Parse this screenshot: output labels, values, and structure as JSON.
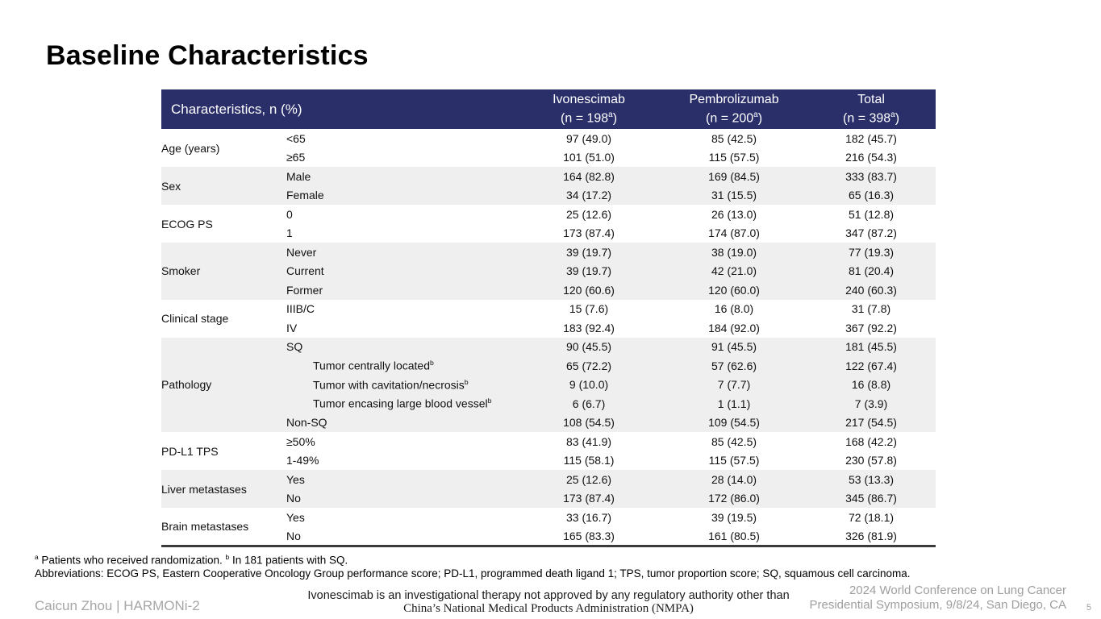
{
  "slide": {
    "title": "Baseline Characteristics",
    "page_number": "5"
  },
  "table": {
    "header": {
      "characteristics_label": "Characteristics, n (%)",
      "columns": [
        {
          "title": "Ivonescimab",
          "n": "198",
          "note": "a"
        },
        {
          "title": "Pembrolizumab",
          "n": "200",
          "note": "a"
        },
        {
          "title": "Total",
          "n": "398",
          "note": "a"
        }
      ]
    },
    "groups": [
      {
        "label": "Age (years)",
        "rows": [
          {
            "characteristic": "<65",
            "values": [
              "97 (49.0)",
              "85 (42.5)",
              "182 (45.7)"
            ]
          },
          {
            "characteristic": "≥65",
            "values": [
              "101 (51.0)",
              "115 (57.5)",
              "216 (54.3)"
            ]
          }
        ]
      },
      {
        "label": "Sex",
        "rows": [
          {
            "characteristic": "Male",
            "values": [
              "164 (82.8)",
              "169 (84.5)",
              "333 (83.7)"
            ]
          },
          {
            "characteristic": "Female",
            "values": [
              "34 (17.2)",
              "31 (15.5)",
              "65 (16.3)"
            ]
          }
        ]
      },
      {
        "label": "ECOG PS",
        "rows": [
          {
            "characteristic": "0",
            "values": [
              "25 (12.6)",
              "26 (13.0)",
              "51 (12.8)"
            ]
          },
          {
            "characteristic": "1",
            "values": [
              "173 (87.4)",
              "174 (87.0)",
              "347 (87.2)"
            ]
          }
        ]
      },
      {
        "label": "Smoker",
        "rows": [
          {
            "characteristic": "Never",
            "values": [
              "39 (19.7)",
              "38 (19.0)",
              "77 (19.3)"
            ]
          },
          {
            "characteristic": "Current",
            "values": [
              "39 (19.7)",
              "42 (21.0)",
              "81 (20.4)"
            ]
          },
          {
            "characteristic": "Former",
            "values": [
              "120 (60.6)",
              "120 (60.0)",
              "240 (60.3)"
            ]
          }
        ]
      },
      {
        "label": "Clinical stage",
        "rows": [
          {
            "characteristic": "IIIB/C",
            "values": [
              "15 (7.6)",
              "16 (8.0)",
              "31 (7.8)"
            ]
          },
          {
            "characteristic": "IV",
            "values": [
              "183 (92.4)",
              "184 (92.0)",
              "367 (92.2)"
            ]
          }
        ]
      },
      {
        "label": "Pathology",
        "rows": [
          {
            "characteristic": "SQ",
            "values": [
              "90 (45.5)",
              "91 (45.5)",
              "181 (45.5)"
            ]
          },
          {
            "characteristic": "Tumor centrally located",
            "sup": "b",
            "indent": true,
            "values": [
              "65 (72.2)",
              "57 (62.6)",
              "122 (67.4)"
            ]
          },
          {
            "characteristic": "Tumor with cavitation/necrosis",
            "sup": "b",
            "indent": true,
            "values": [
              "9 (10.0)",
              "7 (7.7)",
              "16 (8.8)"
            ]
          },
          {
            "characteristic": "Tumor encasing large blood vessel",
            "sup": "b",
            "indent": true,
            "values": [
              "6 (6.7)",
              "1 (1.1)",
              "7 (3.9)"
            ]
          },
          {
            "characteristic": "Non-SQ",
            "values": [
              "108 (54.5)",
              "109 (54.5)",
              "217 (54.5)"
            ]
          }
        ]
      },
      {
        "label": "PD-L1 TPS",
        "rows": [
          {
            "characteristic": "≥50%",
            "values": [
              "83 (41.9)",
              "85 (42.5)",
              "168 (42.2)"
            ]
          },
          {
            "characteristic": "1-49%",
            "values": [
              "115 (58.1)",
              "115 (57.5)",
              "230 (57.8)"
            ]
          }
        ]
      },
      {
        "label": "Liver metastases",
        "rows": [
          {
            "characteristic": "Yes",
            "values": [
              "25 (12.6)",
              "28 (14.0)",
              "53 (13.3)"
            ]
          },
          {
            "characteristic": "No",
            "values": [
              "173 (87.4)",
              "172 (86.0)",
              "345 (86.7)"
            ]
          }
        ]
      },
      {
        "label": "Brain metastases",
        "rows": [
          {
            "characteristic": "Yes",
            "values": [
              "33 (16.7)",
              "39 (19.5)",
              "72 (18.1)"
            ]
          },
          {
            "characteristic": "No",
            "values": [
              "165 (83.3)",
              "161 (80.5)",
              "326 (81.9)"
            ]
          }
        ]
      }
    ]
  },
  "footnotes": {
    "line1_parts": [
      {
        "sup": "a"
      },
      {
        "text": " Patients who received  randomization. "
      },
      {
        "sup": "b"
      },
      {
        "text": " In 181 patients with SQ."
      }
    ],
    "line2": "Abbreviations: ECOG PS, Eastern Cooperative Oncology Group performance score; PD-L1, programmed death ligand 1; TPS, tumor proportion score; SQ, squamous cell carcinoma."
  },
  "footer": {
    "left": "Caicun Zhou | HARMONi-2",
    "center_line1": "Ivonescimab is an investigational therapy not approved by any regulatory authority other than",
    "center_line2": "China’s National Medical Products Administration (NMPA)",
    "right_line1": "2024 World Conference on Lung Cancer",
    "right_line2": "Presidential Symposium, 9/8/24, San Diego, CA"
  },
  "colors": {
    "header_bg": "#2A2F6A",
    "row_alt_bg": "#EFEFEF",
    "footer_gray": "#9E9E9E"
  }
}
